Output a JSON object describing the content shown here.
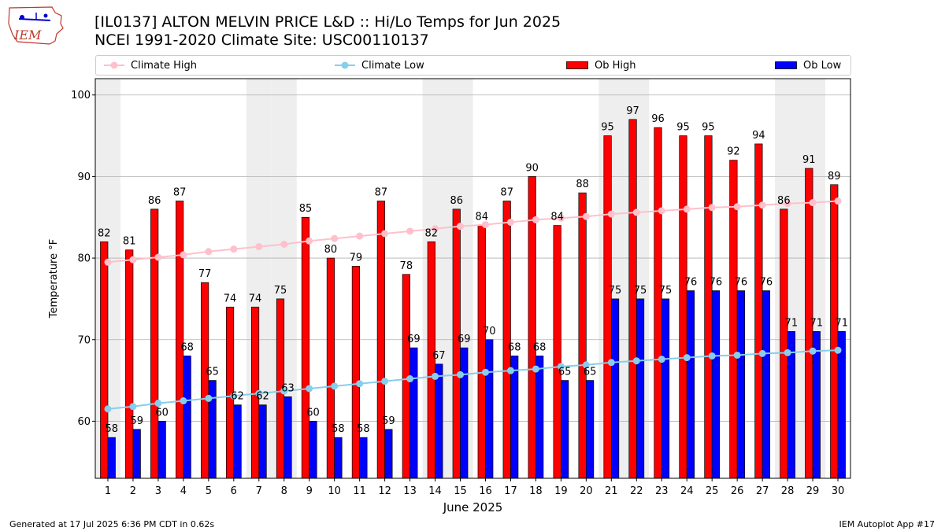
{
  "header": {
    "title_line1": "[IL0137] ALTON MELVIN PRICE L&D :: Hi/Lo Temps for Jun 2025",
    "title_line2": "NCEI 1991-2020 Climate Site: USC00110137",
    "logo_text": "IEM"
  },
  "footer": {
    "generated": "Generated at 17 Jul 2025 6:36 PM CDT in 0.62s",
    "app": "IEM Autoplot App #17"
  },
  "colors": {
    "ob_high": "#ff0000",
    "ob_low": "#0000ff",
    "climate_high": "#ffc0cb",
    "climate_low": "#87ceeb",
    "weekend_shade": "#eeeeee",
    "grid": "#b0b0b0"
  },
  "legend": {
    "placement": "top, above plot",
    "items": [
      {
        "label": "Climate High",
        "kind": "line",
        "color": "#ffc0cb"
      },
      {
        "label": "Climate Low",
        "kind": "line",
        "color": "#87ceeb"
      },
      {
        "label": "Ob High",
        "kind": "bar",
        "color": "#ff0000"
      },
      {
        "label": "Ob Low",
        "kind": "bar",
        "color": "#0000ff"
      }
    ]
  },
  "chart_data": {
    "type": "bar",
    "xlabel": "June 2025",
    "ylabel": "Temperature °F",
    "ylim": [
      53,
      102
    ],
    "yticks": [
      60,
      70,
      80,
      90,
      100
    ],
    "grid": "horizontal",
    "x": [
      1,
      2,
      3,
      4,
      5,
      6,
      7,
      8,
      9,
      10,
      11,
      12,
      13,
      14,
      15,
      16,
      17,
      18,
      19,
      20,
      21,
      22,
      23,
      24,
      25,
      26,
      27,
      28,
      29,
      30
    ],
    "shaded_days": [
      1,
      7,
      8,
      14,
      15,
      21,
      22,
      28,
      29
    ],
    "series": [
      {
        "name": "Ob High",
        "type": "bar",
        "values": [
          82,
          81,
          86,
          87,
          77,
          74,
          74,
          75,
          85,
          80,
          79,
          87,
          78,
          82,
          86,
          84,
          87,
          90,
          84,
          88,
          95,
          97,
          96,
          95,
          95,
          92,
          94,
          86,
          91,
          89
        ]
      },
      {
        "name": "Ob Low",
        "type": "bar",
        "values": [
          58,
          59,
          60,
          68,
          65,
          62,
          62,
          63,
          60,
          58,
          58,
          59,
          69,
          67,
          69,
          70,
          68,
          68,
          65,
          65,
          75,
          75,
          75,
          76,
          76,
          76,
          76,
          71,
          71,
          71
        ]
      },
      {
        "name": "Climate High",
        "type": "line",
        "values": [
          79.5,
          79.8,
          80.1,
          80.4,
          80.8,
          81.1,
          81.4,
          81.7,
          82.1,
          82.4,
          82.7,
          83.0,
          83.3,
          83.6,
          83.9,
          84.1,
          84.4,
          84.7,
          84.9,
          85.1,
          85.4,
          85.6,
          85.8,
          86.0,
          86.2,
          86.3,
          86.5,
          86.7,
          86.8,
          87.0
        ]
      },
      {
        "name": "Climate Low",
        "type": "line",
        "values": [
          61.5,
          61.8,
          62.2,
          62.5,
          62.8,
          63.1,
          63.4,
          63.7,
          64.0,
          64.3,
          64.6,
          64.9,
          65.2,
          65.5,
          65.7,
          66.0,
          66.2,
          66.4,
          66.7,
          66.9,
          67.2,
          67.4,
          67.6,
          67.8,
          68.0,
          68.1,
          68.3,
          68.4,
          68.6,
          68.7
        ]
      }
    ]
  }
}
